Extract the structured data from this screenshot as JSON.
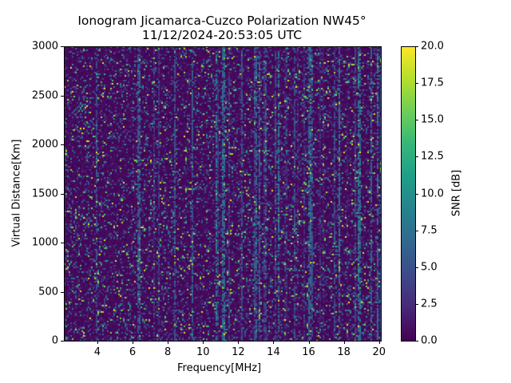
{
  "chart_data": {
    "type": "heatmap",
    "title": "Ionogram Jicamarca-Cuzco Polarization NW45°",
    "subtitle": "11/12/2024-20:53:05 UTC",
    "xlabel": "Frequency[MHz]",
    "ylabel": "Virtual Distance[Km]",
    "xlim": [
      2.1,
      20.1
    ],
    "ylim": [
      0,
      3000
    ],
    "xticks": [
      "4",
      "6",
      "8",
      "10",
      "12",
      "14",
      "16",
      "18",
      "20"
    ],
    "xtick_values": [
      4,
      6,
      8,
      10,
      12,
      14,
      16,
      18,
      20
    ],
    "yticks": [
      "0",
      "500",
      "1000",
      "1500",
      "2000",
      "2500",
      "3000"
    ],
    "ytick_values": [
      0,
      500,
      1000,
      1500,
      2000,
      2500,
      3000
    ],
    "colorbar": {
      "label": "SNR [dB]",
      "colormap": "viridis",
      "range": [
        0,
        20
      ],
      "ticks": [
        "0.0",
        "2.5",
        "5.0",
        "7.5",
        "10.0",
        "12.5",
        "15.0",
        "17.5",
        "20.0"
      ],
      "tick_values": [
        0,
        2.5,
        5,
        7.5,
        10,
        12.5,
        15,
        17.5,
        20
      ]
    },
    "description_values": {
      "background_snr_db": 0,
      "sparse_noise_snr_db_max": 20,
      "enhanced_vertical_streaks_from_mhz": 11
    }
  }
}
